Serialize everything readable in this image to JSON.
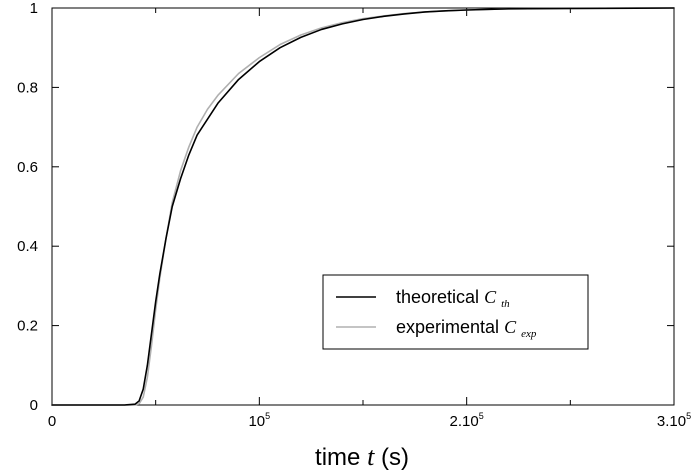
{
  "chart_data": {
    "type": "line",
    "xlabel_text": "time",
    "xlabel_var": "t",
    "xlabel_unit": "(s)",
    "xlim": [
      0,
      300000
    ],
    "ylim": [
      0,
      1
    ],
    "x_ticks": [
      {
        "value": 0,
        "label": "0",
        "sup": ""
      },
      {
        "value": 100000,
        "label": "10",
        "sup": "5"
      },
      {
        "value": 200000,
        "label": "2.10",
        "sup": "5"
      },
      {
        "value": 300000,
        "label": "3.10",
        "sup": "5"
      }
    ],
    "y_ticks": [
      {
        "value": 0,
        "label": "0"
      },
      {
        "value": 0.2,
        "label": "0.2"
      },
      {
        "value": 0.4,
        "label": "0.4"
      },
      {
        "value": 0.6,
        "label": "0.6"
      },
      {
        "value": 0.8,
        "label": "0.8"
      },
      {
        "value": 1,
        "label": "1"
      }
    ],
    "grid": false,
    "legend_position": "center-right",
    "series": [
      {
        "name": "theoretical",
        "var": "C",
        "sub": "th",
        "color": "#000000",
        "x": [
          0,
          35000,
          40000,
          42000,
          44000,
          46000,
          48000,
          50000,
          52000,
          55000,
          58000,
          62000,
          66000,
          70000,
          75000,
          80000,
          90000,
          100000,
          110000,
          120000,
          130000,
          140000,
          150000,
          160000,
          170000,
          180000,
          190000,
          200000,
          220000,
          250000,
          300000
        ],
        "y": [
          0,
          0,
          0.002,
          0.01,
          0.04,
          0.1,
          0.18,
          0.26,
          0.33,
          0.42,
          0.5,
          0.57,
          0.63,
          0.68,
          0.72,
          0.76,
          0.82,
          0.865,
          0.9,
          0.926,
          0.946,
          0.96,
          0.971,
          0.979,
          0.985,
          0.99,
          0.993,
          0.995,
          0.998,
          0.999,
          1.0
        ]
      },
      {
        "name": "experimental",
        "var": "C",
        "sub": "exp",
        "color": "#b0b0b0",
        "x": [
          0,
          40000,
          42000,
          44000,
          46000,
          48000,
          50000,
          52000,
          55000,
          58000,
          62000,
          66000,
          70000,
          75000,
          80000,
          90000,
          100000,
          110000,
          120000,
          130000,
          140000,
          150000,
          160000,
          170000,
          180000,
          190000,
          200000,
          220000,
          250000,
          300000
        ],
        "y": [
          0,
          0,
          0.003,
          0.02,
          0.07,
          0.15,
          0.24,
          0.32,
          0.42,
          0.51,
          0.59,
          0.65,
          0.7,
          0.745,
          0.78,
          0.835,
          0.875,
          0.908,
          0.932,
          0.95,
          0.963,
          0.973,
          0.98,
          0.986,
          0.99,
          0.993,
          0.995,
          0.998,
          0.999,
          1.0
        ]
      }
    ]
  }
}
